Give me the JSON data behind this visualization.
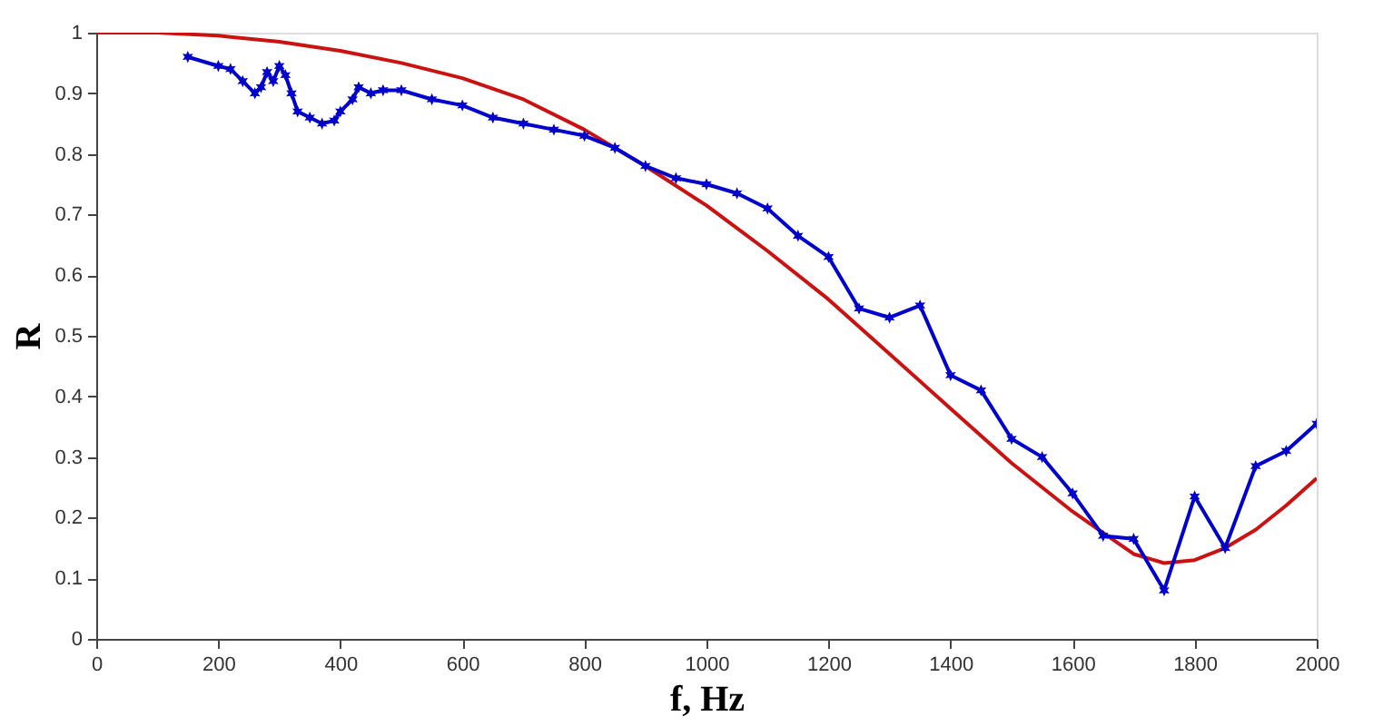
{
  "chart_data": {
    "type": "line",
    "xlabel": "f, Hz",
    "ylabel": "R",
    "xlim": [
      0,
      2000
    ],
    "xticks": [
      0,
      200,
      400,
      600,
      800,
      1000,
      1200,
      1400,
      1600,
      1800,
      2000
    ],
    "ylim": [
      0,
      1
    ],
    "yticks": [
      0,
      0.1,
      0.2,
      0.3,
      0.4,
      0.5,
      0.6,
      0.7,
      0.8,
      0.9,
      1
    ],
    "grid": false,
    "line_style": "solid",
    "series": [
      {
        "color": "#0000cc",
        "marker": "cross",
        "x": [
          150,
          200,
          220,
          240,
          260,
          270,
          280,
          290,
          300,
          310,
          320,
          330,
          350,
          370,
          390,
          400,
          420,
          430,
          450,
          470,
          500,
          550,
          600,
          650,
          700,
          750,
          800,
          850,
          900,
          950,
          1000,
          1050,
          1100,
          1150,
          1200,
          1250,
          1300,
          1350,
          1400,
          1450,
          1500,
          1550,
          1600,
          1650,
          1700,
          1750,
          1800,
          1850,
          1900,
          1950,
          2000
        ],
        "values": [
          0.96,
          0.945,
          0.94,
          0.92,
          0.9,
          0.91,
          0.935,
          0.92,
          0.945,
          0.93,
          0.9,
          0.87,
          0.86,
          0.85,
          0.855,
          0.87,
          0.89,
          0.91,
          0.9,
          0.905,
          0.905,
          0.89,
          0.88,
          0.86,
          0.85,
          0.84,
          0.83,
          0.81,
          0.78,
          0.76,
          0.75,
          0.735,
          0.71,
          0.665,
          0.63,
          0.545,
          0.53,
          0.55,
          0.435,
          0.41,
          0.33,
          0.3,
          0.24,
          0.17,
          0.165,
          0.08,
          0.235,
          0.15,
          0.285,
          0.31,
          0.355
        ]
      },
      {
        "color": "#cc1111",
        "marker": "none",
        "x": [
          0,
          100,
          200,
          300,
          400,
          500,
          600,
          700,
          800,
          900,
          1000,
          1100,
          1200,
          1300,
          1400,
          1500,
          1600,
          1650,
          1700,
          1750,
          1800,
          1850,
          1900,
          1950,
          2000
        ],
        "values": [
          1.0,
          1.0,
          0.995,
          0.985,
          0.97,
          0.95,
          0.925,
          0.89,
          0.84,
          0.78,
          0.715,
          0.64,
          0.56,
          0.47,
          0.38,
          0.29,
          0.21,
          0.175,
          0.14,
          0.125,
          0.13,
          0.15,
          0.18,
          0.22,
          0.265
        ]
      }
    ]
  }
}
